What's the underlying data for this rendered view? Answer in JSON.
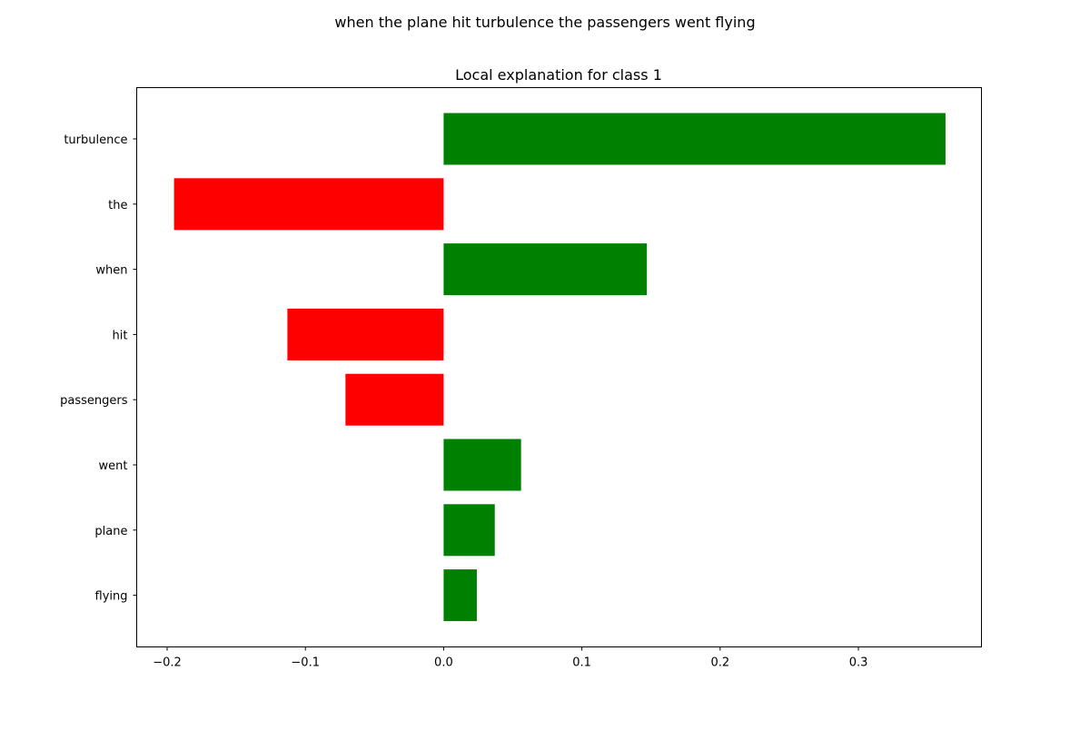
{
  "figure": {
    "suptitle": "when the plane hit turbulence the passengers went flying"
  },
  "chart_data": {
    "type": "bar",
    "orientation": "horizontal",
    "title": "Local explanation for class 1",
    "xlabel": "",
    "ylabel": "",
    "categories": [
      "turbulence",
      "the",
      "when",
      "hit",
      "passengers",
      "went",
      "plane",
      "flying"
    ],
    "values": [
      0.363,
      -0.195,
      0.147,
      -0.113,
      -0.071,
      0.056,
      0.037,
      0.024
    ],
    "colors": {
      "positive": "#008000",
      "negative": "#ff0000"
    },
    "xlim": [
      -0.222,
      0.389
    ],
    "xticks": [
      -0.2,
      -0.1,
      0.0,
      0.1,
      0.2,
      0.3
    ],
    "xtick_labels": [
      "−0.2",
      "−0.1",
      "0.0",
      "0.1",
      "0.2",
      "0.3"
    ],
    "grid": false,
    "legend": "none"
  }
}
